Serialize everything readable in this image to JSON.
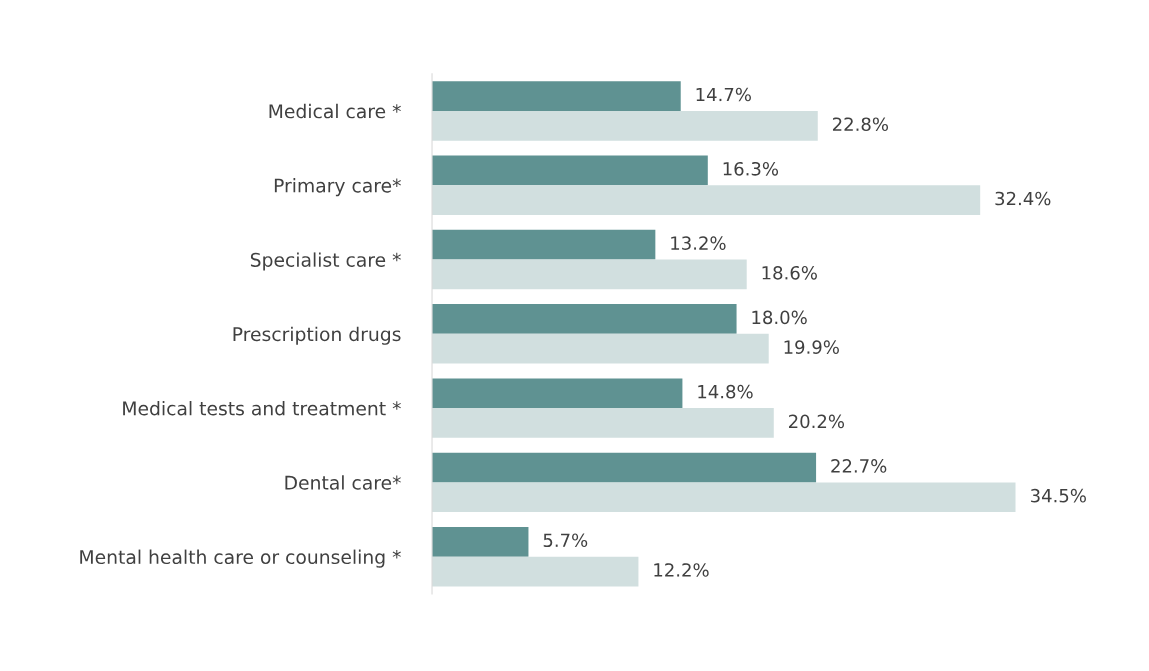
{
  "chart_data": {
    "type": "bar",
    "orientation": "horizontal",
    "legend": false,
    "grid": false,
    "categories": [
      "Medical care *",
      "Primary care*",
      "Specialist care *",
      "Prescription drugs",
      "Medical tests and treatment *",
      "Dental care*",
      "Mental health care or counseling *"
    ],
    "series": [
      {
        "color": "#5f9292",
        "values": [
          14.7,
          16.3,
          13.2,
          18.0,
          14.8,
          22.7,
          5.7
        ],
        "value_labels": [
          "14.7%",
          "16.3%",
          "13.2%",
          "18.0%",
          "14.8%",
          "22.7%",
          "5.7%"
        ]
      },
      {
        "color": "#d1dfdf",
        "values": [
          22.8,
          32.4,
          18.6,
          19.9,
          20.2,
          34.5,
          12.2
        ],
        "value_labels": [
          "22.8%",
          "32.4%",
          "18.6%",
          "19.9%",
          "20.2%",
          "34.5%",
          "12.2%"
        ]
      }
    ]
  }
}
